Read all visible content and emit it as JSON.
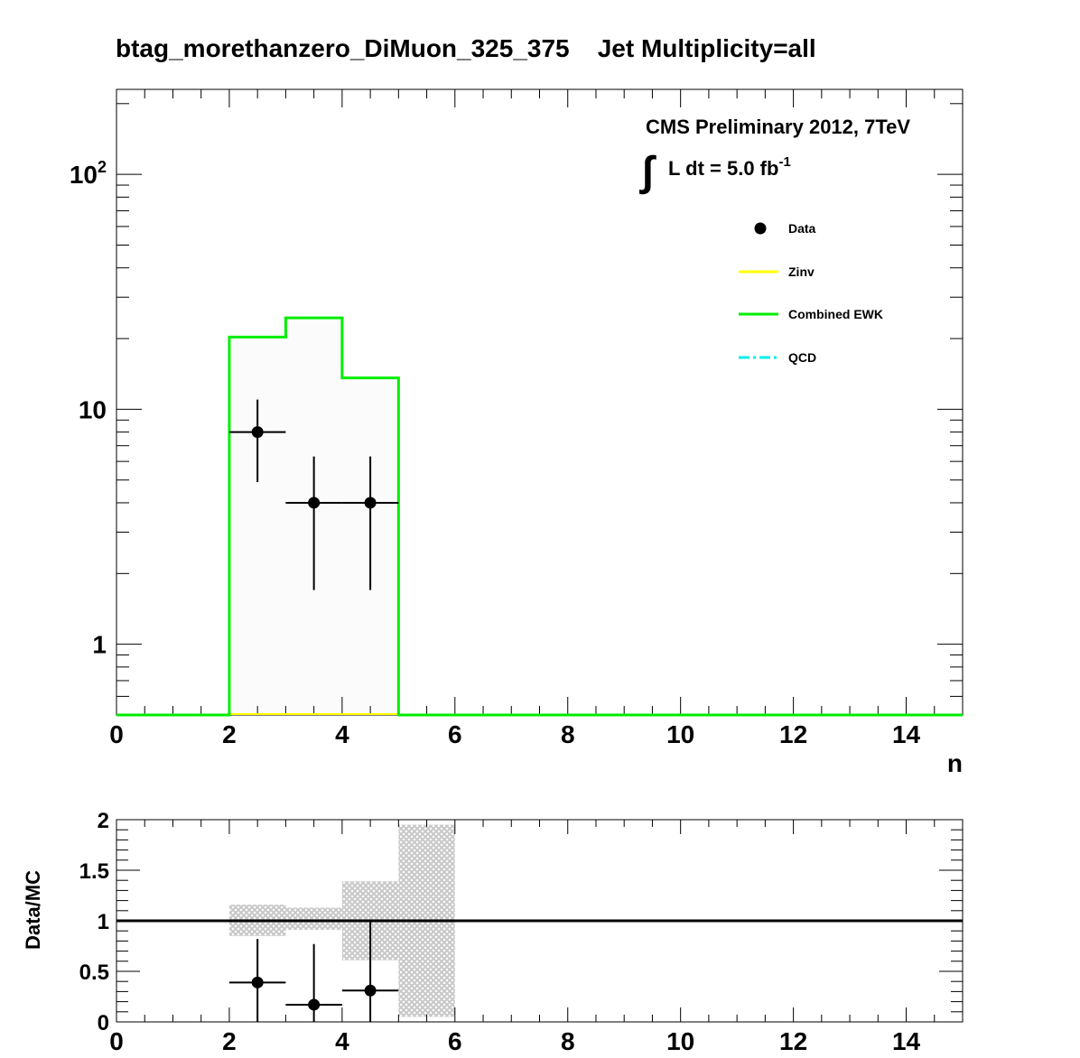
{
  "title": "btag_morethanzero_DiMuon_325_375    Jet Multiplicity=all",
  "cms_label": "CMS Preliminary 2012, 7TeV",
  "lumi": {
    "integral_symbol": "∫",
    "text": "L dt = 5.0 fb",
    "exponent": "-1"
  },
  "colors": {
    "data": "#000000",
    "zinv": "#ffff00",
    "ewk": "#00ee00",
    "qcd": "#00eeee",
    "band": "#c8c8c8",
    "fill": "#fbfbfb"
  },
  "legend": [
    {
      "key": "data",
      "label": "Data",
      "style": "marker"
    },
    {
      "key": "zinv",
      "label": "Zinv",
      "style": "line"
    },
    {
      "key": "ewk",
      "label": "Combined EWK",
      "style": "line"
    },
    {
      "key": "qcd",
      "label": "QCD",
      "style": "dashdot"
    }
  ],
  "chart_data": [
    {
      "type": "line",
      "subtype": "step-histogram",
      "xlabel": "n",
      "ylabel": "",
      "xlim": [
        0,
        15
      ],
      "ylim": [
        0.5,
        230
      ],
      "log_y": true,
      "x_ticks": [
        "0",
        "2",
        "4",
        "6",
        "8",
        "10",
        "12",
        "14"
      ],
      "y_ticks": [
        {
          "value": 1,
          "label": "1",
          "exp": ""
        },
        {
          "value": 10,
          "label": "10",
          "exp": ""
        },
        {
          "value": 100,
          "label": "10",
          "exp": "2"
        }
      ],
      "series": [
        {
          "name": "Combined EWK",
          "bin_edges": [
            2,
            3,
            4,
            5
          ],
          "values": [
            20.3,
            24.5,
            13.6
          ]
        },
        {
          "name": "Zinv",
          "bin_edges": [
            2,
            3,
            4,
            5
          ],
          "values": [
            0,
            0,
            0
          ]
        },
        {
          "name": "Data",
          "points": [
            {
              "x": 2.5,
              "y": 8,
              "xerr": 0.5,
              "ylow": 4.9,
              "yhigh": 11
            },
            {
              "x": 3.5,
              "y": 4,
              "xerr": 0.5,
              "ylow": 1.7,
              "yhigh": 6.3
            },
            {
              "x": 4.5,
              "y": 4,
              "xerr": 0.5,
              "ylow": 1.7,
              "yhigh": 6.3
            }
          ]
        }
      ]
    },
    {
      "type": "scatter",
      "subtype": "ratio",
      "xlabel": "",
      "ylabel": "Data/MC",
      "xlim": [
        0,
        15
      ],
      "ylim": [
        0,
        2
      ],
      "x_ticks": [
        "0",
        "2",
        "4",
        "6",
        "8",
        "10",
        "12",
        "14"
      ],
      "y_ticks": [
        "0",
        "0.5",
        "1",
        "1.5",
        "2"
      ],
      "y_tick_values": [
        0,
        0.5,
        1,
        1.5,
        2
      ],
      "reference_line": 1,
      "uncertainty_band": [
        {
          "x0": 2,
          "x1": 3,
          "low": 0.85,
          "high": 1.16
        },
        {
          "x0": 3,
          "x1": 4,
          "low": 0.91,
          "high": 1.13
        },
        {
          "x0": 4,
          "x1": 5,
          "low": 0.61,
          "high": 1.39
        },
        {
          "x0": 5,
          "x1": 6,
          "low": 0.05,
          "high": 1.95
        }
      ],
      "points": [
        {
          "x": 2.5,
          "y": 0.39,
          "xerr": 0.5,
          "ylow": 0.0,
          "yhigh": 0.82
        },
        {
          "x": 3.5,
          "y": 0.17,
          "xerr": 0.5,
          "ylow": 0.0,
          "yhigh": 0.77
        },
        {
          "x": 4.5,
          "y": 0.31,
          "xerr": 0.5,
          "ylow": 0.0,
          "yhigh": 1.0
        }
      ]
    }
  ]
}
